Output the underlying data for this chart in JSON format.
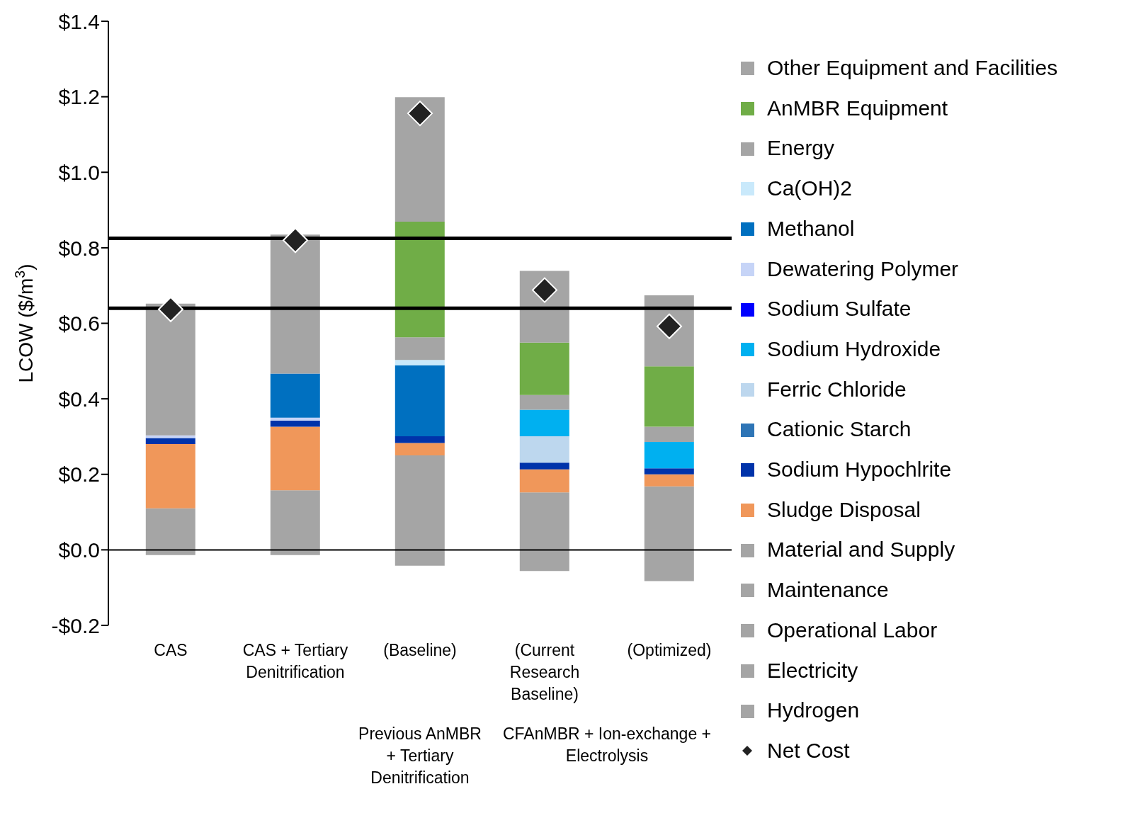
{
  "chart_data": {
    "type": "bar",
    "stacked": true,
    "ylabel": "LCOW ($/m$^{3}$)",
    "categories": [
      "CAS",
      "CAS + Tertiary Denitrification",
      "(Baseline)",
      "(Current Research Baseline)",
      "(Optimized)"
    ],
    "annotations": [
      "Previous AnMBR + Tertiary Denitrification",
      "CFAnMBR + Ion-exchange + Electrolysis"
    ],
    "ylim": [
      -0.2,
      1.4
    ],
    "yticks": [
      {
        "value": -0.2,
        "label": "-$0.2"
      },
      {
        "value": 0,
        "label": "$0.0"
      },
      {
        "value": 0.2,
        "label": "$0.2"
      },
      {
        "value": 0.4,
        "label": "$0.4"
      },
      {
        "value": 0.6,
        "label": "$0.6"
      },
      {
        "value": 0.8,
        "label": "$0.8"
      },
      {
        "value": 1.0,
        "label": "$1.0"
      },
      {
        "value": 1.2,
        "label": "$1.2"
      },
      {
        "value": 1.4,
        "label": "$1.4"
      }
    ],
    "legend": "right",
    "ref_lines": [
      {
        "axis": "y",
        "value": 0,
        "color": "#000000"
      },
      {
        "axis": "y",
        "value": 0.825,
        "color": "#000000"
      },
      {
        "axis": "y",
        "value": 0.64,
        "color": "#000000"
      }
    ],
    "series": [
      {
        "name": "Hydrogen",
        "color": "#a5a5a5",
        "values": [
          -0.014,
          -0.014,
          -0.042,
          -0.056,
          -0.083
        ]
      },
      {
        "name": "Electricity",
        "color": "#a5a5a5",
        "values": [
          null,
          null,
          null,
          null,
          null
        ]
      },
      {
        "name": "Operational Labor",
        "color": "#a5a5a5",
        "values": [
          null,
          null,
          null,
          null,
          null
        ]
      },
      {
        "name": "Maintenance",
        "color": "#a5a5a5",
        "values": [
          null,
          null,
          null,
          null,
          null
        ]
      },
      {
        "name": "Material and Supply",
        "color": "#a5a5a5",
        "values": [
          0.11,
          0.158,
          0.25,
          0.152,
          0.168
        ]
      },
      {
        "name": "Sludge Disposal",
        "color": "#f0975a",
        "values": [
          0.17,
          0.168,
          0.033,
          0.061,
          0.032
        ]
      },
      {
        "name": "Sodium Hypochlrite",
        "color": "#0033aa",
        "values": [
          0.016,
          0.016,
          0.018,
          0.018,
          0.016
        ]
      },
      {
        "name": "Cationic Starch",
        "color": "#2e75b6",
        "values": [
          null,
          null,
          null,
          null,
          null
        ]
      },
      {
        "name": "Ferric Chloride",
        "color": "#bdd7ee",
        "values": [
          null,
          null,
          null,
          0.07,
          null
        ]
      },
      {
        "name": "Sodium Hydroxide",
        "color": "#00b0f0",
        "values": [
          null,
          null,
          null,
          0.07,
          0.07
        ]
      },
      {
        "name": "Sodium Sulfate",
        "color": "#0000ff",
        "values": [
          null,
          null,
          null,
          null,
          null
        ]
      },
      {
        "name": "Dewatering Polymer",
        "color": "#c6d4f7",
        "values": [
          0.007,
          0.008,
          null,
          null,
          null
        ]
      },
      {
        "name": "Methanol",
        "color": "#0070c0",
        "values": [
          null,
          0.117,
          0.188,
          null,
          null
        ]
      },
      {
        "name": "Ca(OH)2",
        "color": "#c9e9fb",
        "values": [
          null,
          null,
          0.014,
          null,
          null
        ]
      },
      {
        "name": "Energy",
        "color": "#a5a5a5",
        "values": [
          null,
          null,
          0.06,
          0.039,
          0.04
        ]
      },
      {
        "name": "AnMBR Equipment",
        "color": "#70ad47",
        "values": [
          null,
          null,
          0.306,
          0.139,
          0.16
        ]
      },
      {
        "name": "Other Equipment and Facilities",
        "color": "#a5a5a5",
        "values": [
          0.349,
          0.368,
          0.33,
          0.19,
          0.188
        ]
      },
      {
        "name": "Net Cost",
        "type": "scatter",
        "marker": "diamond",
        "color": "#222222",
        "values": [
          0.637,
          0.82,
          1.156,
          0.688,
          0.592
        ]
      }
    ]
  }
}
